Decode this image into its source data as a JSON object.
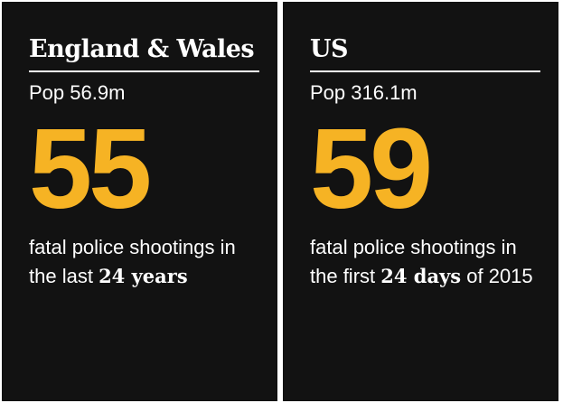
{
  "panels": [
    {
      "title": "England & Wales",
      "population": "Pop 56.9m",
      "number": 55,
      "caption": {
        "before": "fatal police shootings in the last",
        "bold": "24 years"
      }
    },
    {
      "title": "US",
      "population": "Pop 316.1m",
      "number": 59,
      "caption": {
        "before": "fatal police shootings in the first",
        "bold": "24 days",
        "after": "of 2015"
      }
    }
  ]
}
